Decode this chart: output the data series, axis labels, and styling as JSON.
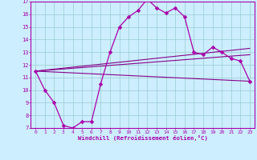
{
  "xlabel": "Windchill (Refroidissement éolien,°C)",
  "bg_color": "#cceeff",
  "line_color": "#aa00aa",
  "line_color2": "#880088",
  "xlim": [
    -0.5,
    23.5
  ],
  "ylim": [
    7,
    17
  ],
  "xticks": [
    0,
    1,
    2,
    3,
    4,
    5,
    6,
    7,
    8,
    9,
    10,
    11,
    12,
    13,
    14,
    15,
    16,
    17,
    18,
    19,
    20,
    21,
    22,
    23
  ],
  "yticks": [
    7,
    8,
    9,
    10,
    11,
    12,
    13,
    14,
    15,
    16,
    17
  ],
  "grid_color": "#99cccc",
  "line1_x": [
    0,
    1,
    2,
    3,
    4,
    5,
    6,
    7,
    8,
    9,
    10,
    11,
    12,
    13,
    14,
    15,
    16,
    17,
    18,
    19,
    20,
    21,
    22,
    23
  ],
  "line1_y": [
    11.5,
    10.0,
    9.0,
    7.2,
    7.0,
    7.5,
    7.5,
    10.5,
    13.0,
    15.0,
    15.8,
    16.3,
    17.2,
    16.5,
    16.1,
    16.5,
    15.8,
    13.0,
    12.8,
    13.4,
    13.0,
    12.5,
    12.3,
    10.7
  ],
  "line2_x": [
    0,
    23
  ],
  "line2_y": [
    11.5,
    10.7
  ],
  "line3_x": [
    0,
    23
  ],
  "line3_y": [
    11.5,
    12.8
  ],
  "line4_x": [
    0,
    23
  ],
  "line4_y": [
    11.5,
    13.3
  ],
  "markersize": 2.5,
  "linewidth": 0.9
}
